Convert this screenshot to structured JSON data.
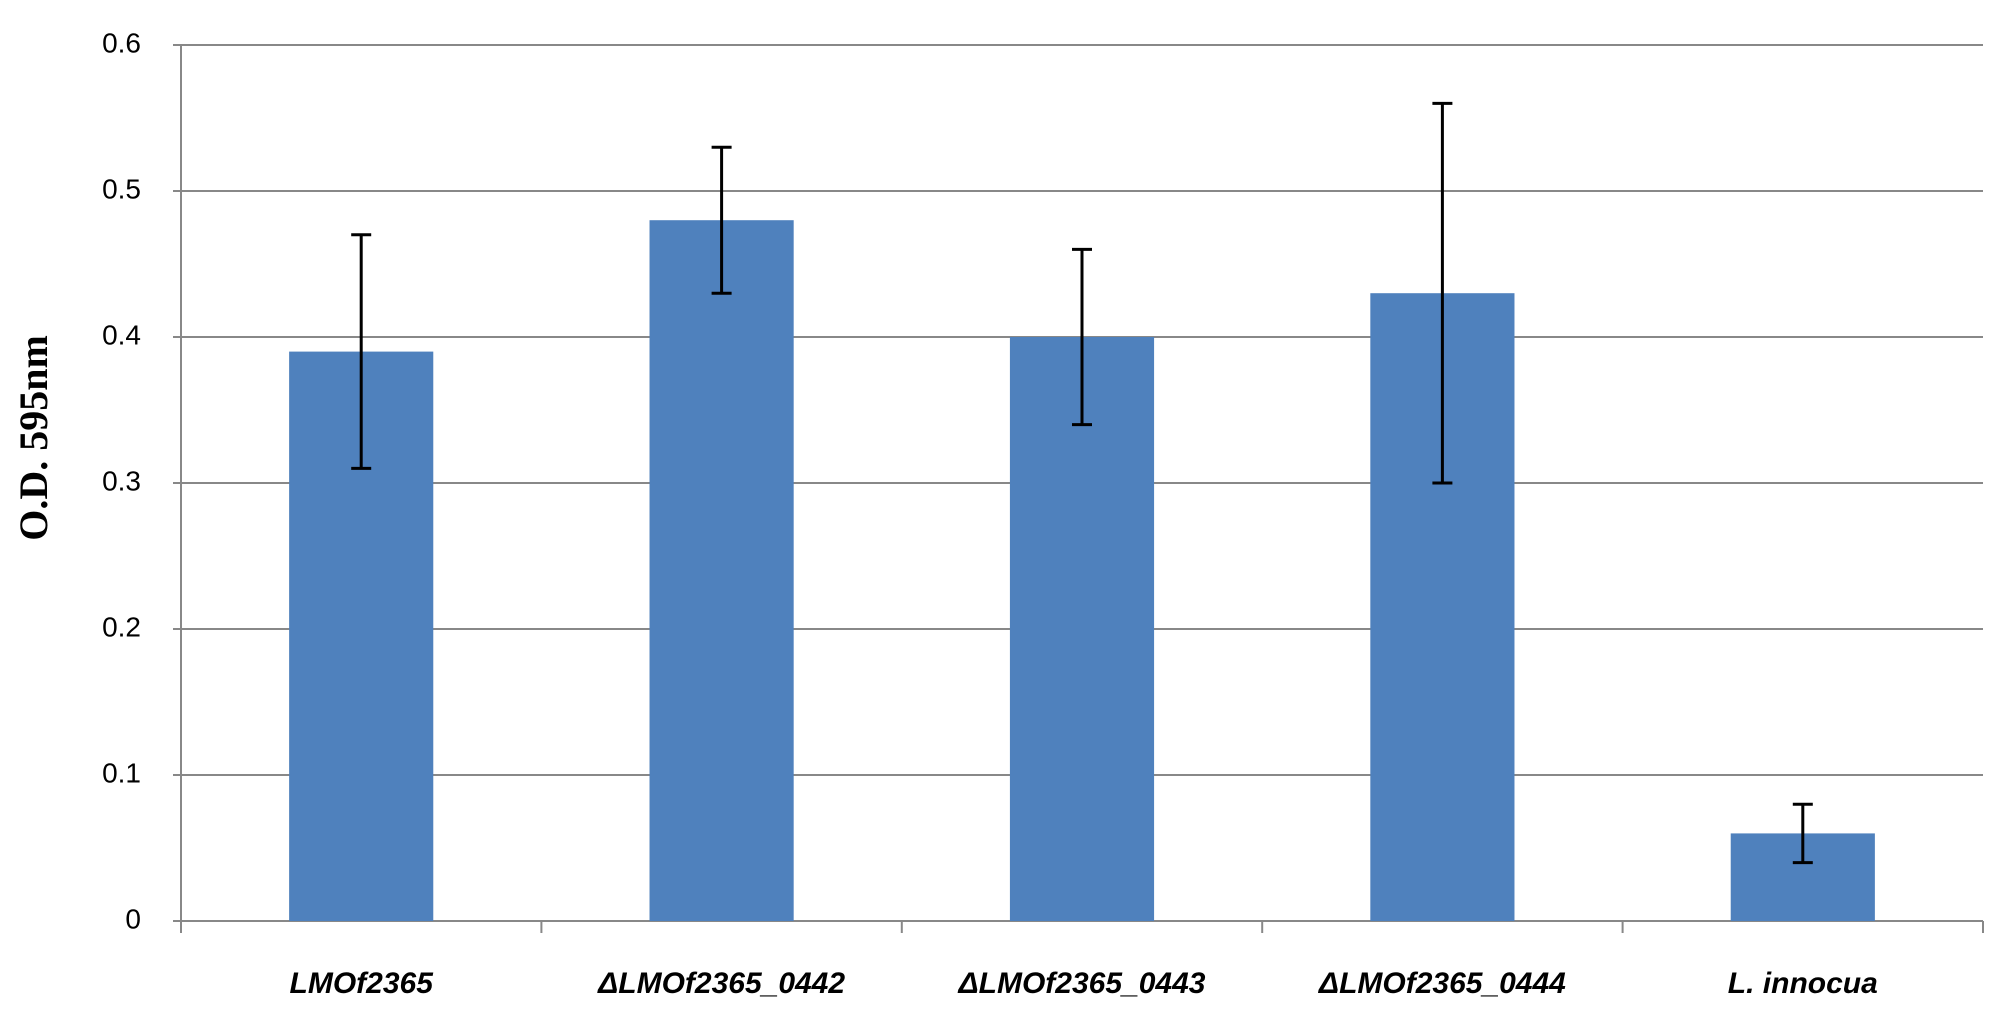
{
  "chart_data": {
    "type": "bar",
    "y_label": "O.D. 595nm",
    "categories": [
      "LMOf2365",
      "ΔLMOf2365_0442",
      "ΔLMOf2365_0443",
      "ΔLMOf2365_0444",
      "L. innocua"
    ],
    "values": [
      0.39,
      0.48,
      0.4,
      0.43,
      0.06
    ],
    "errors": [
      0.08,
      0.05,
      0.06,
      0.13,
      0.02
    ],
    "color": "#4f81bd",
    "ylim": [
      0,
      0.6
    ],
    "yticks": [
      0,
      0.1,
      0.2,
      0.3,
      0.4,
      0.5,
      0.6
    ],
    "grid": true
  }
}
